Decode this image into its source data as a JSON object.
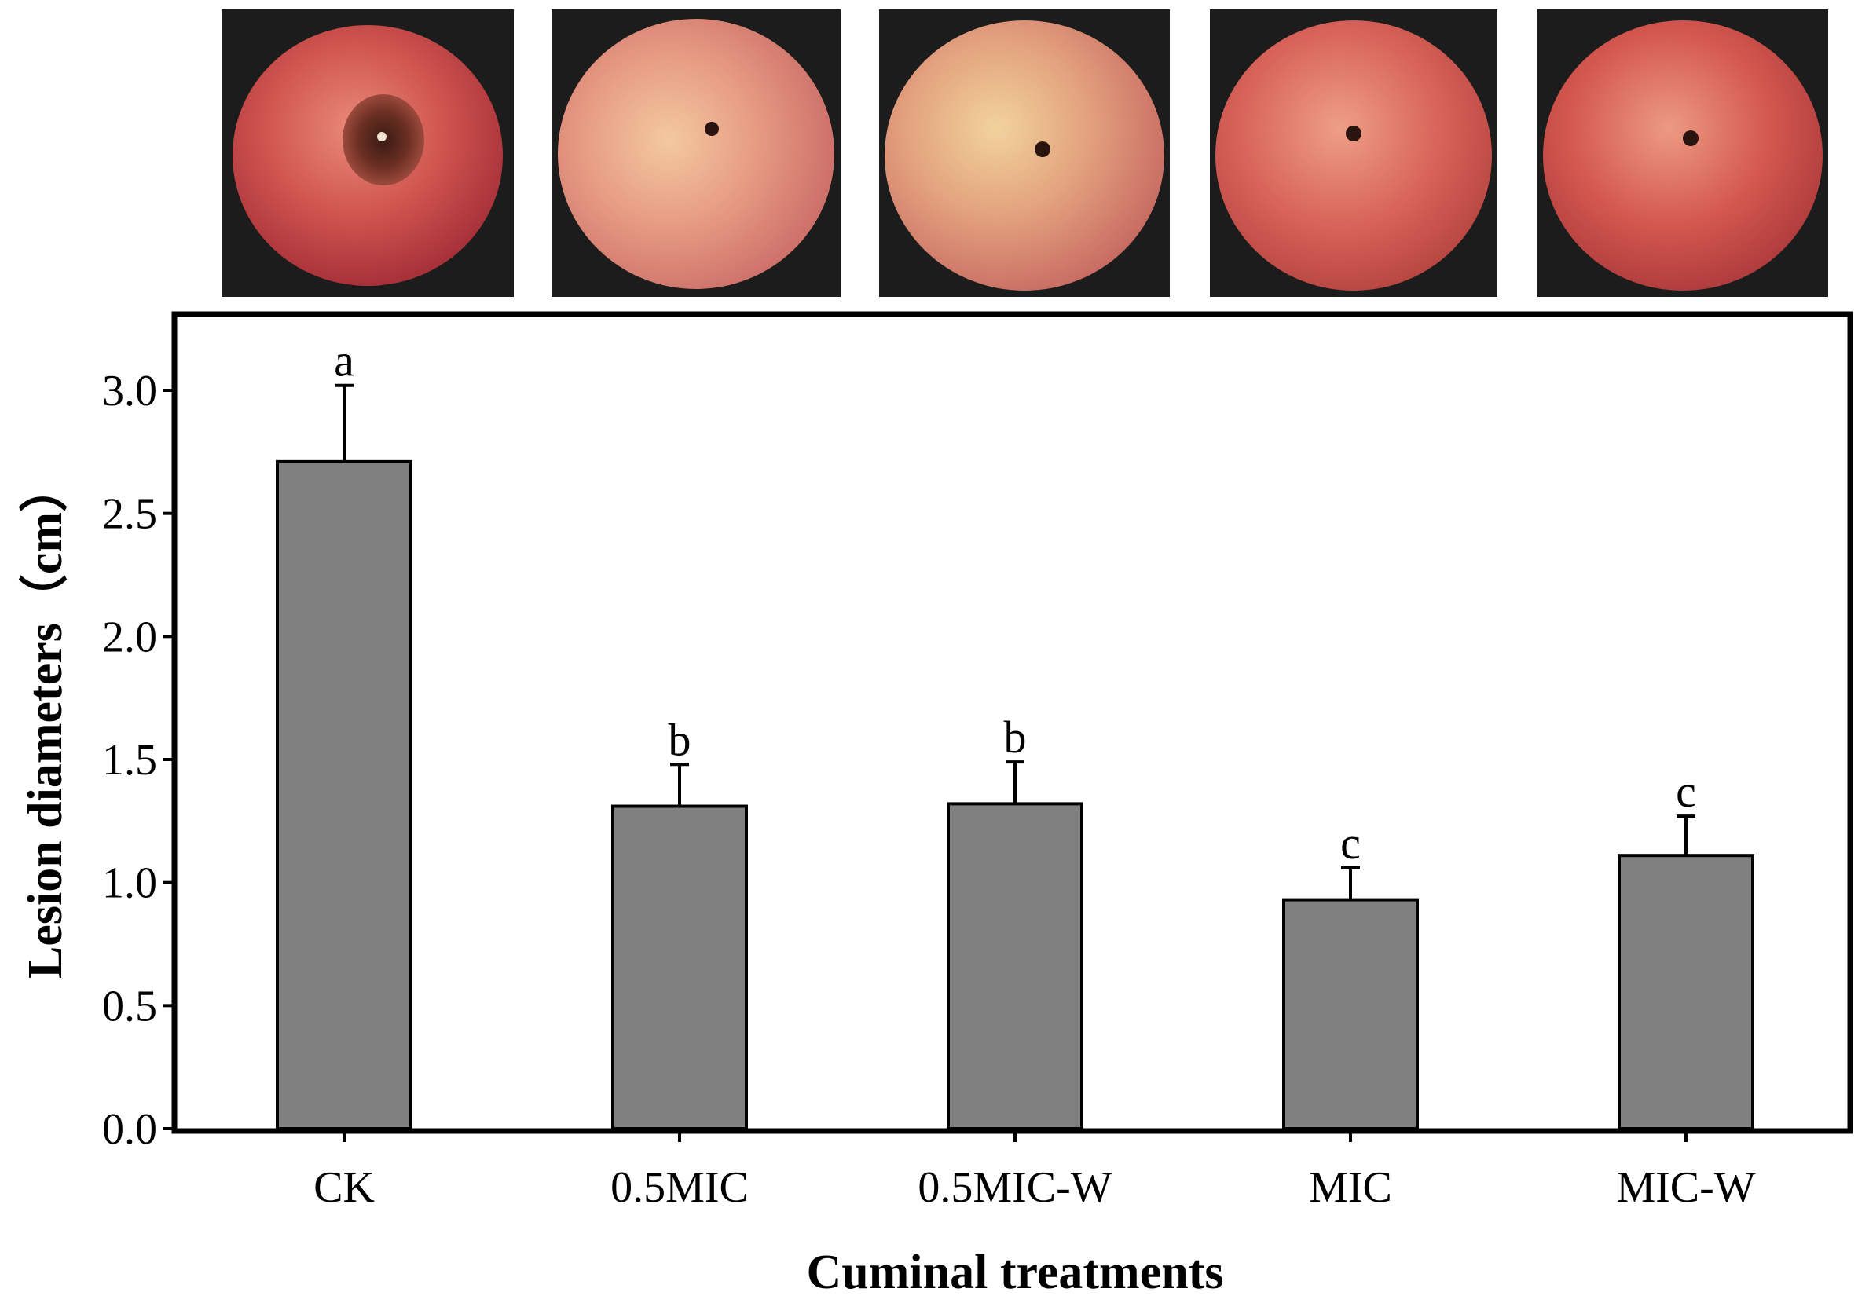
{
  "chart_data": {
    "type": "bar",
    "title": "",
    "xlabel": "Cuminal treatments",
    "ylabel": "Lesion diameters（cm）",
    "ylim": [
      0,
      3.25
    ],
    "yticks": [
      "0.0",
      "0.5",
      "1.0",
      "1.5",
      "2.0",
      "2.5",
      "3.0"
    ],
    "categories": [
      "CK",
      "0.5MIC",
      "0.5MIC-W",
      "MIC",
      "MIC-W"
    ],
    "values": [
      2.71,
      1.31,
      1.32,
      0.93,
      1.11
    ],
    "errors": [
      0.31,
      0.17,
      0.17,
      0.13,
      0.16
    ],
    "significance": [
      "a",
      "b",
      "b",
      "c",
      "c"
    ],
    "grid": false,
    "bar_color": "#808080"
  },
  "photos": [
    {
      "treatment": "CK",
      "lesion": "large"
    },
    {
      "treatment": "0.5MIC",
      "lesion": "small"
    },
    {
      "treatment": "0.5MIC-W",
      "lesion": "small"
    },
    {
      "treatment": "MIC",
      "lesion": "small"
    },
    {
      "treatment": "MIC-W",
      "lesion": "small"
    }
  ]
}
